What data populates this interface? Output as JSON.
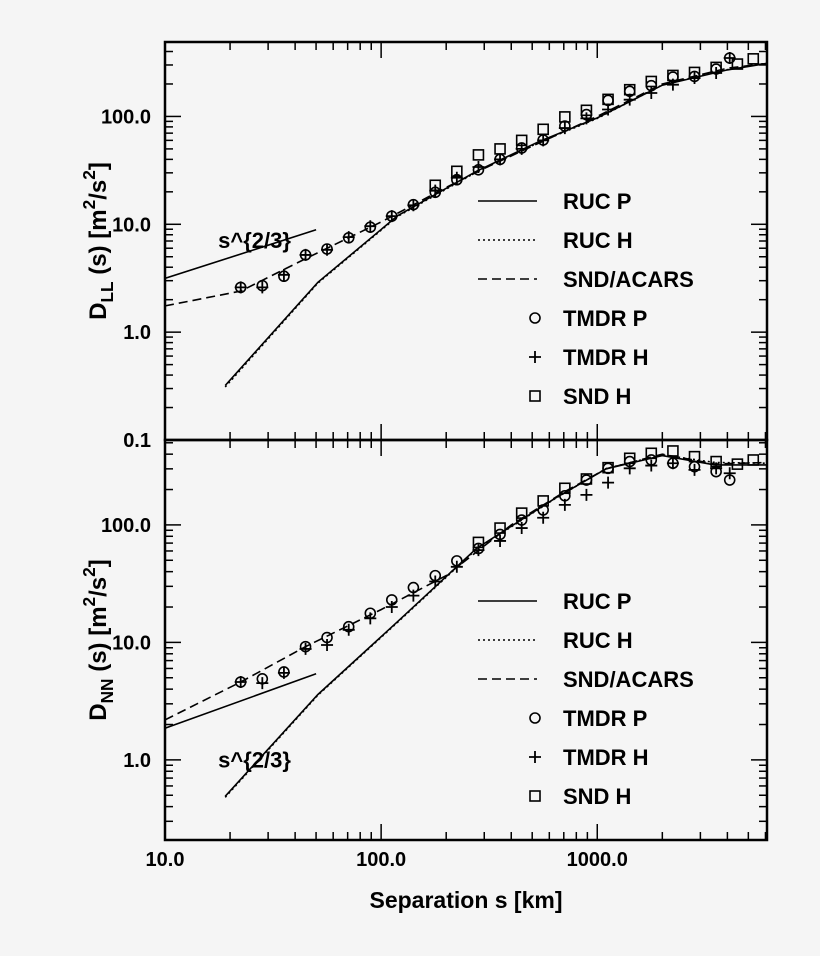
{
  "chart_data": [
    {
      "type": "line",
      "panel": "top",
      "xlabel": "",
      "ylabel": "D_{LL} (s) [m^{2}/s^{2}]",
      "xscale": "log",
      "yscale": "log",
      "xlim": [
        10,
        6100
      ],
      "ylim": [
        0.1,
        490
      ],
      "xticks": [
        {
          "v": 10,
          "label": "10.0"
        },
        {
          "v": 100,
          "label": "100.0"
        },
        {
          "v": 1000,
          "label": "1000.0"
        }
      ],
      "yticks": [
        {
          "v": 0.1,
          "label": "0.1"
        },
        {
          "v": 1,
          "label": "1.0"
        },
        {
          "v": 10,
          "label": "10.0"
        },
        {
          "v": 100,
          "label": "100.0"
        }
      ],
      "annotation": {
        "text": "s^{2/3}",
        "x": 11.5,
        "y": 7.5
      },
      "legend_position": "right",
      "series": [
        {
          "name": "RUC P",
          "style": "solid",
          "x": [
            19,
            51,
            119,
            276,
            542,
            1000,
            2000,
            4000,
            6100
          ],
          "y": [
            0.32,
            2.9,
            12,
            31,
            59,
            97,
            195,
            270,
            310
          ]
        },
        {
          "name": "RUC H",
          "style": "dotted",
          "x": [
            19,
            51,
            119,
            276,
            542,
            1000,
            2000,
            4000,
            6100
          ],
          "y": [
            0.31,
            2.85,
            11.8,
            30.5,
            58,
            96,
            196,
            272,
            312
          ]
        },
        {
          "name": "SND/ACARS",
          "style": "dashed",
          "x": [
            10,
            22.4,
            44.7,
            100,
            200,
            300,
            500,
            1000,
            2000,
            4000,
            6100
          ],
          "y": [
            1.75,
            2.4,
            4.8,
            10.5,
            22,
            33,
            53,
            100,
            200,
            280,
            310
          ]
        },
        {
          "name": "TMDR P",
          "style": "circle",
          "x": [
            22.4,
            28.2,
            35.5,
            44.7,
            56.2,
            70.8,
            89.1,
            112,
            141,
            178,
            224,
            282,
            355,
            447,
            562,
            708,
            891,
            1122,
            1413,
            1778,
            2239,
            2818,
            3548,
            4100
          ],
          "y": [
            2.6,
            2.7,
            3.3,
            5.2,
            5.9,
            7.5,
            9.4,
            11.9,
            15.2,
            19.8,
            25.9,
            32,
            40,
            51,
            60.5,
            81.5,
            104,
            141,
            171,
            193,
            232,
            235,
            275,
            348
          ]
        },
        {
          "name": "TMDR H",
          "style": "plus",
          "x": [
            22.4,
            28.2,
            35.5,
            44.7,
            56.2,
            70.8,
            89.1,
            112,
            141,
            178,
            224,
            282,
            355,
            447,
            562,
            708,
            891,
            1122,
            1413,
            1778,
            2239,
            2818,
            3548,
            4100
          ],
          "y": [
            2.6,
            2.6,
            3.4,
            5.2,
            5.8,
            7.6,
            9.6,
            11.9,
            15,
            20.5,
            27,
            34,
            40,
            50,
            60,
            78,
            96,
            116,
            143,
            165,
            197,
            227,
            253,
            348
          ]
        },
        {
          "name": "SND H",
          "style": "square",
          "x": [
            178,
            224,
            282,
            355,
            447,
            562,
            708,
            891,
            1122,
            1413,
            1778,
            2239,
            2818,
            3548,
            4450,
            5270
          ],
          "y": [
            23,
            31,
            44,
            50,
            60,
            76,
            99,
            114,
            144,
            177,
            211,
            240,
            256,
            285,
            306,
            342
          ]
        },
        {
          "name": "s^{2/3}",
          "style": "solid",
          "x": [
            10,
            50
          ],
          "y": [
            3.15,
            8.9
          ]
        }
      ],
      "legend": [
        "RUC P",
        "RUC H",
        "SND/ACARS",
        "TMDR P",
        "TMDR H",
        "SND H"
      ]
    },
    {
      "type": "line",
      "panel": "bottom",
      "xlabel": "Separation s [km]",
      "ylabel": "D_{NN} (s) [m^{2}/s^{2}]",
      "xscale": "log",
      "yscale": "log",
      "xlim": [
        10,
        6100
      ],
      "ylim": [
        0.208,
        528
      ],
      "xticks": [
        {
          "v": 10,
          "label": "10.0"
        },
        {
          "v": 100,
          "label": "100.0"
        },
        {
          "v": 1000,
          "label": "1000.0"
        }
      ],
      "yticks": [
        {
          "v": 1,
          "label": "1.0"
        },
        {
          "v": 10,
          "label": "10.0"
        },
        {
          "v": 100,
          "label": "100.0"
        }
      ],
      "annotation": {
        "text": "s^{2/3}",
        "x": 11.5,
        "y": 1.05
      },
      "legend_position": "right",
      "series": [
        {
          "name": "RUC P",
          "style": "solid",
          "x": [
            19,
            51,
            119,
            276,
            640,
            1100,
            2000,
            3500,
            6100
          ],
          "y": [
            0.49,
            3.6,
            15,
            63,
            169,
            300,
            389,
            324,
            324
          ]
        },
        {
          "name": "RUC H",
          "style": "dotted",
          "x": [
            19,
            51,
            119,
            276,
            640,
            1100,
            2000,
            3500,
            6100
          ],
          "y": [
            0.48,
            3.55,
            14.8,
            62,
            168,
            302,
            395,
            340,
            335
          ]
        },
        {
          "name": "SND/ACARS",
          "style": "dashed",
          "x": [
            10,
            22.4,
            44.7,
            100,
            200,
            400,
            700,
            1100,
            2000,
            3500,
            6100
          ],
          "y": [
            2.19,
            4.6,
            9.2,
            19,
            37,
            100,
            190,
            300,
            400,
            330,
            340
          ]
        },
        {
          "name": "TMDR P",
          "style": "circle",
          "x": [
            22.4,
            28.2,
            35.5,
            44.7,
            56.2,
            70.8,
            89.1,
            112,
            141,
            178,
            224,
            282,
            355,
            447,
            562,
            708,
            891,
            1122,
            1413,
            1778,
            2239,
            2818,
            3548,
            4100
          ],
          "y": [
            4.6,
            4.9,
            5.6,
            9.2,
            11,
            13.6,
            17.7,
            23,
            29.3,
            37,
            49.4,
            63,
            83,
            110,
            134,
            177,
            241,
            303,
            346,
            357,
            335,
            313,
            284,
            241
          ]
        },
        {
          "name": "TMDR H",
          "style": "plus",
          "x": [
            22.4,
            28.2,
            35.5,
            44.7,
            56.2,
            70.8,
            89.1,
            112,
            141,
            178,
            224,
            282,
            355,
            447,
            562,
            708,
            891,
            1122,
            1413,
            1778,
            2239,
            2818,
            3548,
            4100
          ],
          "y": [
            4.6,
            4.5,
            5.5,
            8.8,
            9.5,
            12.8,
            16,
            20,
            25,
            33,
            44,
            61,
            73,
            94,
            115,
            148,
            180,
            229,
            303,
            320,
            335,
            294,
            303,
            275
          ]
        },
        {
          "name": "SND H",
          "style": "square",
          "x": [
            282,
            355,
            447,
            562,
            708,
            891,
            1122,
            1413,
            1778,
            2239,
            2818,
            3548,
            4450,
            5270
          ],
          "y": [
            71,
            94,
            126,
            160,
            205,
            246,
            307,
            369,
            407,
            426,
            381,
            346,
            329,
            357
          ]
        },
        {
          "name": "s^{2/3}",
          "style": "solid",
          "x": [
            10,
            50
          ],
          "y": [
            1.86,
            5.4
          ]
        }
      ],
      "legend": [
        "RUC P",
        "RUC H",
        "SND/ACARS",
        "TMDR P",
        "TMDR H",
        "SND H"
      ]
    }
  ]
}
